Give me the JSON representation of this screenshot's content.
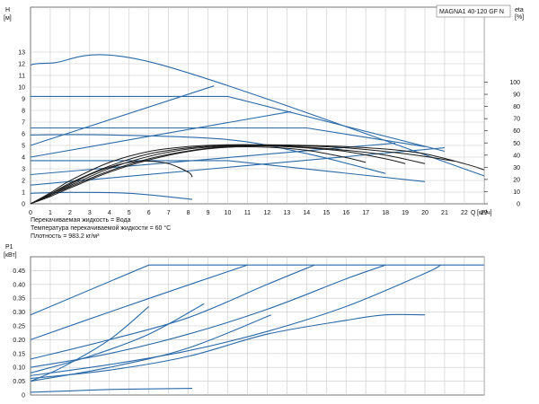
{
  "chart_data": [
    {
      "type": "line",
      "name": "pump-curves",
      "title": "MAGNA1 40-120 GF N",
      "ylabel": "H",
      "yunit": "[м]",
      "xlabel": "Q",
      "xunit": "[м³/ч]",
      "xlim": [
        0,
        24
      ],
      "ylim": [
        0,
        14
      ],
      "x_ticks": [
        0,
        1,
        2,
        3,
        4,
        5,
        6,
        7,
        8,
        9,
        10,
        11,
        12,
        13,
        14,
        15,
        16,
        17,
        18,
        19,
        20,
        21,
        22,
        23
      ],
      "y_ticks": [
        0,
        1,
        2,
        3,
        4,
        5,
        6,
        7,
        8,
        9,
        10,
        11,
        12,
        13
      ],
      "y2label": "eta",
      "y2unit": "[%]",
      "y2lim": [
        0,
        120
      ],
      "y2_ticks": [
        0,
        10,
        20,
        30,
        40,
        50,
        60,
        70,
        80,
        90,
        100
      ],
      "grid": true,
      "notes": [
        "Перекачиваемая жидкость = Вода",
        "Температура перекачиваемой жидкости = 60 °C",
        "Плотность = 983.2 кг/м³"
      ],
      "series": [
        {
          "kind": "head",
          "color": "#2a6aa8",
          "x": [
            0,
            1,
            6.3,
            23
          ],
          "y": [
            11.9,
            12.05,
            12.05,
            2.4
          ]
        },
        {
          "kind": "head",
          "color": "#2a6aa8",
          "x": [
            0,
            10,
            21
          ],
          "y": [
            9.2,
            9.2,
            4.5
          ]
        },
        {
          "kind": "head",
          "color": "#2a6aa8",
          "x": [
            0,
            14,
            20
          ],
          "y": [
            6.5,
            6.5,
            4.9
          ]
        },
        {
          "kind": "head",
          "color": "#2a6aa8",
          "x": [
            0,
            4,
            10,
            14,
            18
          ],
          "y": [
            5.9,
            5.9,
            5.5,
            4.3,
            2.6
          ]
        },
        {
          "kind": "head",
          "color": "#2a6aa8",
          "x": [
            0,
            10,
            20
          ],
          "y": [
            3.7,
            3.7,
            1.9
          ]
        },
        {
          "kind": "head",
          "color": "#2a6aa8",
          "x": [
            0,
            2,
            5,
            8.2
          ],
          "y": [
            0.9,
            0.98,
            0.9,
            0.38
          ]
        },
        {
          "kind": "head",
          "color": "#2a6aa8",
          "x": [
            0,
            9.3
          ],
          "y": [
            5.0,
            10.1
          ]
        },
        {
          "kind": "head",
          "color": "#2a6aa8",
          "x": [
            0,
            13.2
          ],
          "y": [
            4.0,
            7.9
          ]
        },
        {
          "kind": "head",
          "color": "#2a6aa8",
          "x": [
            0,
            18.5
          ],
          "y": [
            2.5,
            5.2
          ]
        },
        {
          "kind": "head",
          "color": "#2a6aa8",
          "x": [
            0,
            21
          ],
          "y": [
            1.6,
            4.8
          ]
        },
        {
          "kind": "eta",
          "color": "#1a1a1a",
          "x": [
            0,
            1,
            2,
            4,
            6,
            8,
            10,
            12,
            14,
            16,
            18,
            20,
            22,
            23
          ],
          "y": [
            0,
            9,
            19,
            34,
            43,
            47,
            48.5,
            48.5,
            48,
            47,
            45,
            41,
            33,
            28
          ]
        },
        {
          "kind": "eta",
          "color": "#1a1a1a",
          "x": [
            0,
            1,
            2,
            4,
            6,
            8,
            10,
            12,
            14,
            16,
            18,
            20,
            21.5
          ],
          "y": [
            0,
            8,
            17,
            31,
            41,
            46,
            48,
            48,
            47.5,
            46,
            43,
            39,
            35
          ]
        },
        {
          "kind": "eta",
          "color": "#1a1a1a",
          "x": [
            0,
            1,
            2,
            4,
            6,
            8,
            10,
            12,
            14,
            16,
            18,
            20
          ],
          "y": [
            0,
            7,
            15,
            29,
            39,
            45,
            47.5,
            48,
            46.5,
            44,
            40,
            33
          ]
        },
        {
          "kind": "eta",
          "color": "#1a1a1a",
          "x": [
            0,
            1,
            2,
            4,
            6,
            8,
            10,
            12,
            14,
            16,
            18,
            19
          ],
          "y": [
            0,
            7,
            14,
            27,
            37,
            43.5,
            47,
            47.5,
            46,
            43,
            37,
            33
          ]
        },
        {
          "kind": "eta",
          "color": "#1a1a1a",
          "x": [
            0,
            1,
            2,
            4,
            6,
            8,
            10,
            12,
            14,
            16,
            17
          ],
          "y": [
            0,
            6,
            13,
            26,
            36,
            43,
            46.5,
            46.5,
            44,
            38,
            34
          ]
        },
        {
          "kind": "eta",
          "color": "#1a1a1a",
          "x": [
            0,
            1,
            2,
            3,
            4,
            5,
            6,
            7,
            8,
            8.2
          ],
          "y": [
            0,
            8,
            16,
            24,
            30,
            34,
            35,
            33,
            26,
            22
          ]
        }
      ]
    },
    {
      "type": "line",
      "name": "power-curves",
      "ylabel": "P1",
      "yunit": "[кВт]",
      "xlim": [
        0,
        24
      ],
      "ylim": [
        0,
        0.5
      ],
      "y_ticks": [
        0,
        0.05,
        0.1,
        0.15,
        0.2,
        0.25,
        0.3,
        0.35,
        0.4,
        0.45
      ],
      "y_tick_labels": [
        "0",
        "0.05",
        "0.10",
        "0.15",
        "0.20",
        "0.25",
        "0.30",
        "0.35",
        "0.40",
        "0.45"
      ],
      "grid": true,
      "series": [
        {
          "color": "#2a6aa8",
          "x": [
            0,
            6.0,
            23
          ],
          "y": [
            0.29,
            0.47,
            0.47
          ]
        },
        {
          "color": "#2a6aa8",
          "x": [
            0,
            4,
            8.5,
            11.0
          ],
          "y": [
            0.2,
            0.3,
            0.41,
            0.47
          ]
        },
        {
          "color": "#2a6aa8",
          "x": [
            0,
            4,
            8,
            12,
            14.4
          ],
          "y": [
            0.13,
            0.2,
            0.28,
            0.4,
            0.47
          ]
        },
        {
          "color": "#2a6aa8",
          "x": [
            0,
            4,
            8,
            12,
            16,
            18.0
          ],
          "y": [
            0.1,
            0.15,
            0.22,
            0.31,
            0.42,
            0.47
          ]
        },
        {
          "color": "#2a6aa8",
          "x": [
            0,
            4,
            8,
            12,
            16,
            20,
            20.8
          ],
          "y": [
            0.07,
            0.11,
            0.16,
            0.23,
            0.32,
            0.44,
            0.47
          ]
        },
        {
          "color": "#2a6aa8",
          "x": [
            0,
            4,
            8,
            12,
            16,
            18,
            20
          ],
          "y": [
            0.06,
            0.09,
            0.14,
            0.22,
            0.27,
            0.29,
            0.29
          ]
        },
        {
          "color": "#2a6aa8",
          "x": [
            0,
            2,
            4,
            6,
            8.2
          ],
          "y": [
            0.01,
            0.015,
            0.02,
            0.022,
            0.024
          ]
        },
        {
          "color": "#2a6aa8",
          "x": [
            0,
            1.6,
            4,
            6.0
          ],
          "y": [
            0.05,
            0.1,
            0.2,
            0.32
          ]
        },
        {
          "color": "#2a6aa8",
          "x": [
            0,
            3,
            6,
            8.8
          ],
          "y": [
            0.08,
            0.14,
            0.22,
            0.33
          ]
        },
        {
          "color": "#2a6aa8",
          "x": [
            0,
            4,
            8,
            12.2
          ],
          "y": [
            0.05,
            0.1,
            0.17,
            0.29
          ]
        }
      ]
    }
  ]
}
